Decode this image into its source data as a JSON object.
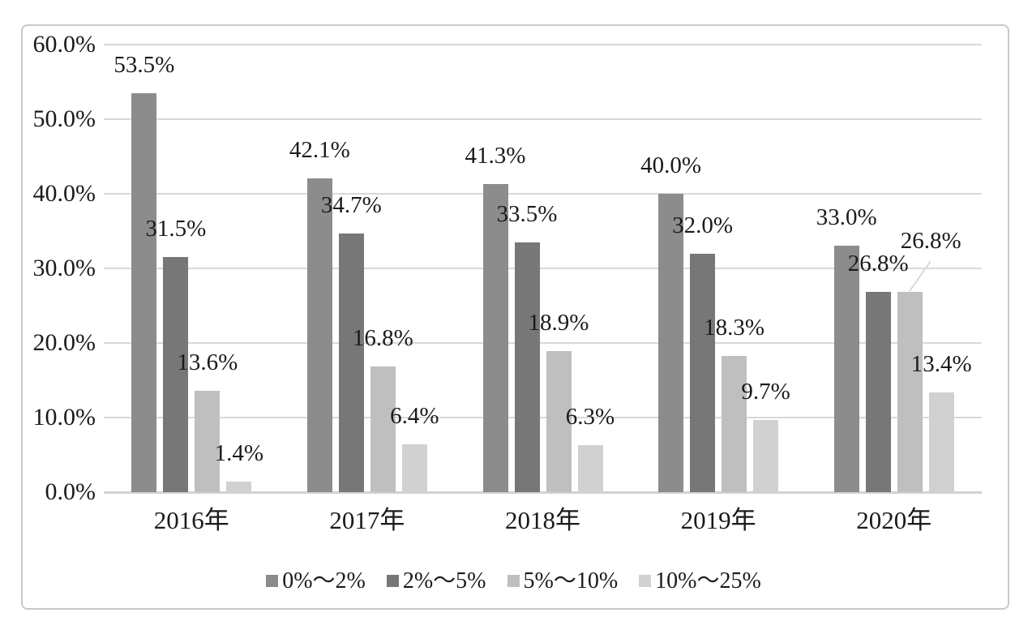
{
  "chart_data": {
    "type": "bar",
    "title": "",
    "categories": [
      "2016年",
      "2017年",
      "2018年",
      "2019年",
      "2020年"
    ],
    "series": [
      {
        "name": "0%～2%",
        "color": "#8c8c8c",
        "values": [
          53.5,
          42.1,
          41.3,
          40.0,
          33.0
        ],
        "labels": [
          "53.5%",
          "42.1%",
          "41.3%",
          "40.0%",
          "33.0%"
        ]
      },
      {
        "name": "2%～5%",
        "color": "#777777",
        "values": [
          31.5,
          34.7,
          33.5,
          32.0,
          26.8
        ],
        "labels": [
          "31.5%",
          "34.7%",
          "33.5%",
          "32.0%",
          "26.8%"
        ]
      },
      {
        "name": "5%～10%",
        "color": "#bfbfbf",
        "values": [
          13.6,
          16.8,
          18.9,
          18.3,
          26.8
        ],
        "labels": [
          "13.6%",
          "16.8%",
          "18.9%",
          "18.3%",
          "26.8%"
        ]
      },
      {
        "name": "10%～25%",
        "color": "#d1d1d1",
        "values": [
          1.4,
          6.4,
          6.3,
          9.7,
          13.4
        ],
        "labels": [
          "1.4%",
          "6.4%",
          "6.3%",
          "9.7%",
          "13.4%"
        ]
      }
    ],
    "y_axis": {
      "min": 0,
      "max": 60,
      "step": 10,
      "tick_labels": [
        "60.0%",
        "50.0%",
        "40.0%",
        "30.0%",
        "20.0%",
        "10.0%",
        "0.0%"
      ]
    },
    "grid": true,
    "legend_position": "bottom",
    "label_callouts": [
      {
        "category_index": 4,
        "series_index": 2,
        "dx": 26,
        "dy": -28
      }
    ]
  },
  "colors": {
    "gridline": "#d9d9d9",
    "axis_line": "#d2d2d2",
    "frame_border": "#c9c9c9",
    "leader_line": "#d9d9d9",
    "text": "#1a1a1a"
  }
}
